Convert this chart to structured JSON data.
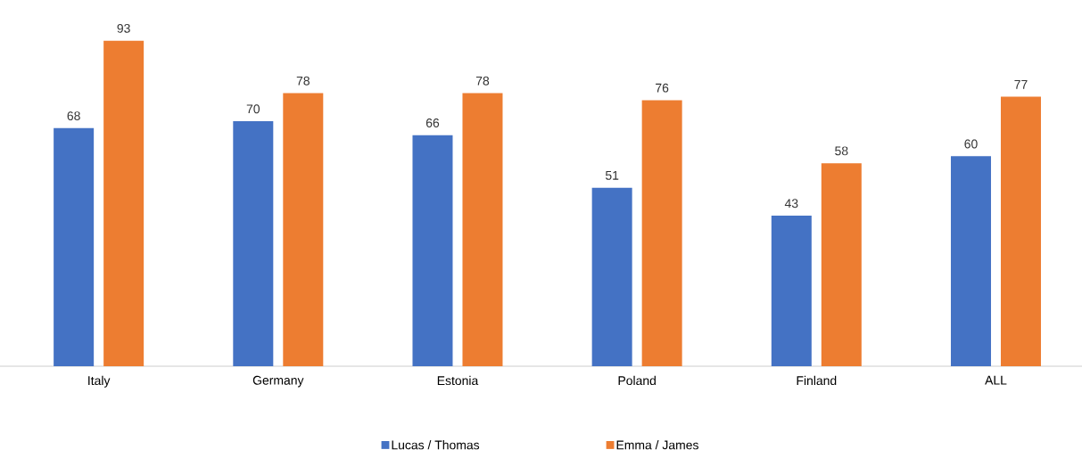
{
  "chart_data": {
    "type": "bar",
    "categories": [
      "Italy",
      "Germany",
      "Estonia",
      "Poland",
      "Finland",
      "ALL"
    ],
    "series": [
      {
        "name": "Lucas / Thomas",
        "color": "#4472c4",
        "values": [
          68,
          70,
          66,
          51,
          43,
          60
        ]
      },
      {
        "name": "Emma / James",
        "color": "#ed7d31",
        "values": [
          93,
          78,
          78,
          76,
          58,
          77
        ]
      }
    ],
    "data_labels": true,
    "legend": "bottom"
  }
}
